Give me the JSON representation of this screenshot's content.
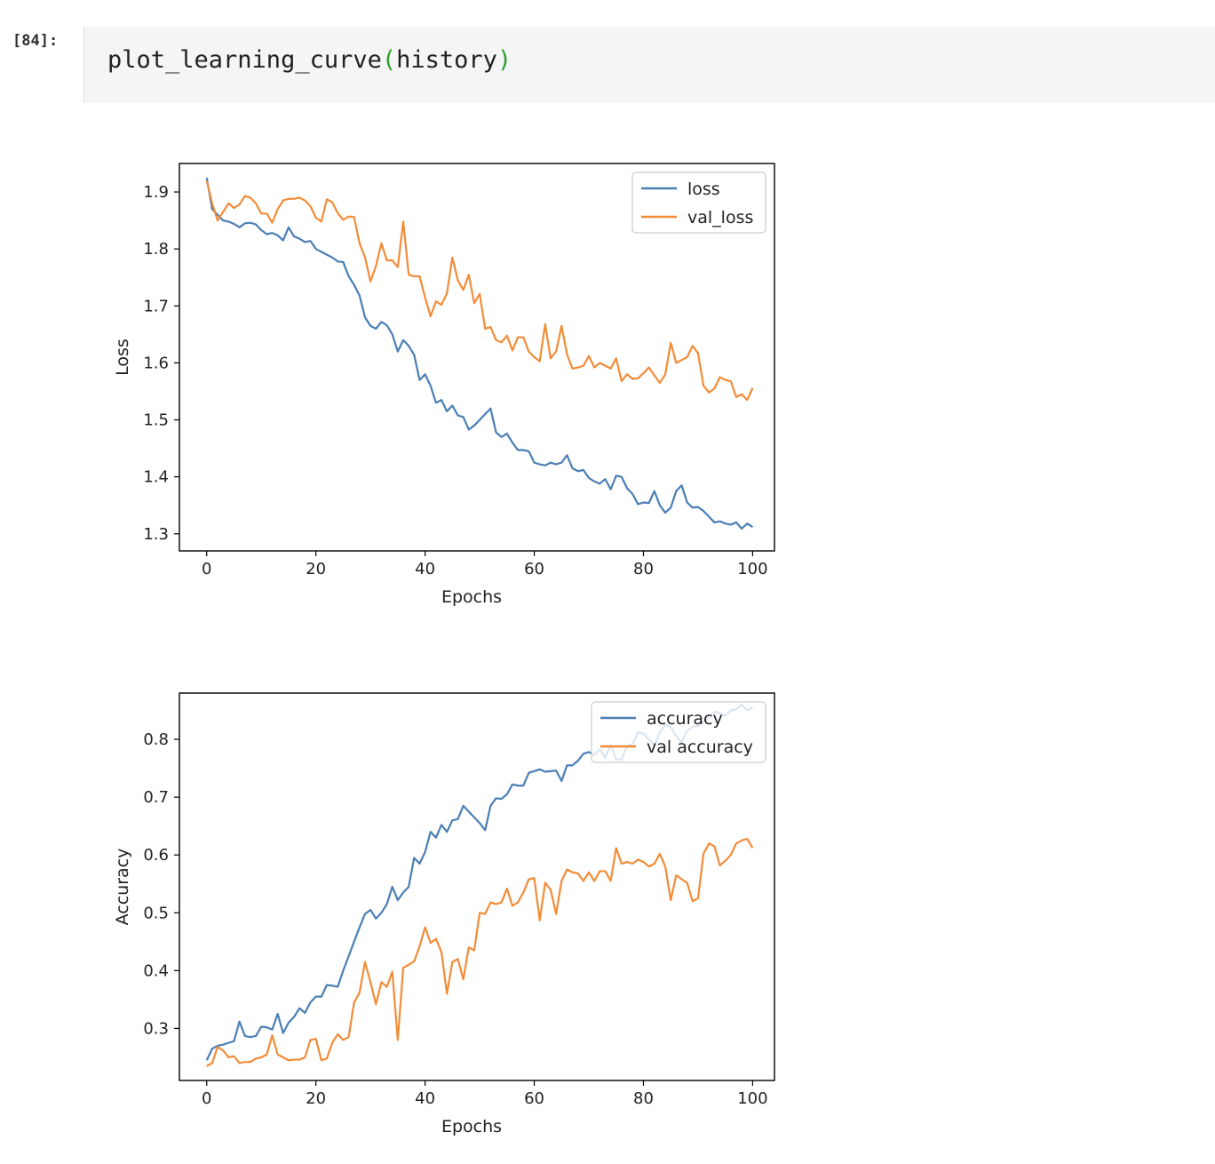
{
  "cell": {
    "prompt": "[84]:",
    "func": "plot_learning_curve",
    "open_paren": "(",
    "arg": "history",
    "close_paren": ")"
  },
  "colors": {
    "blue": "#4a7fb5",
    "orange": "#f28c38"
  },
  "chart_data": [
    {
      "type": "line",
      "xlabel": "Epochs",
      "ylabel": "Loss",
      "xlim": [
        -5,
        104
      ],
      "ylim": [
        1.27,
        1.95
      ],
      "xticks": [
        0,
        20,
        40,
        60,
        80,
        100
      ],
      "yticks": [
        1.3,
        1.4,
        1.5,
        1.6,
        1.7,
        1.8,
        1.9
      ],
      "legend": "top-right",
      "series": [
        {
          "name": "loss",
          "color": "#4a7fb5",
          "values": [
            1.925,
            1.87,
            1.86,
            1.85,
            1.848,
            1.844,
            1.838,
            1.845,
            1.846,
            1.843,
            1.833,
            1.826,
            1.828,
            1.824,
            1.815,
            1.838,
            1.822,
            1.818,
            1.812,
            1.814,
            1.8,
            1.795,
            1.79,
            1.785,
            1.778,
            1.777,
            1.752,
            1.737,
            1.718,
            1.68,
            1.665,
            1.66,
            1.672,
            1.666,
            1.65,
            1.62,
            1.64,
            1.63,
            1.614,
            1.57,
            1.58,
            1.56,
            1.53,
            1.535,
            1.515,
            1.525,
            1.508,
            1.505,
            1.483,
            1.49,
            1.5,
            1.51,
            1.52,
            1.478,
            1.47,
            1.476,
            1.46,
            1.447,
            1.447,
            1.445,
            1.425,
            1.422,
            1.42,
            1.425,
            1.422,
            1.425,
            1.438,
            1.415,
            1.41,
            1.412,
            1.398,
            1.392,
            1.388,
            1.396,
            1.378,
            1.402,
            1.4,
            1.38,
            1.37,
            1.352,
            1.355,
            1.354,
            1.375,
            1.35,
            1.337,
            1.346,
            1.375,
            1.385,
            1.355,
            1.346,
            1.347,
            1.34,
            1.33,
            1.32,
            1.322,
            1.318,
            1.316,
            1.32,
            1.309,
            1.318,
            1.312
          ]
        },
        {
          "name": "val_loss",
          "color": "#f28c38",
          "values": [
            1.92,
            1.88,
            1.85,
            1.865,
            1.88,
            1.872,
            1.878,
            1.893,
            1.89,
            1.88,
            1.862,
            1.862,
            1.846,
            1.87,
            1.885,
            1.888,
            1.888,
            1.89,
            1.885,
            1.875,
            1.855,
            1.848,
            1.887,
            1.882,
            1.863,
            1.851,
            1.857,
            1.856,
            1.81,
            1.785,
            1.743,
            1.77,
            1.81,
            1.78,
            1.78,
            1.768,
            1.848,
            1.755,
            1.752,
            1.752,
            1.715,
            1.682,
            1.708,
            1.702,
            1.722,
            1.785,
            1.745,
            1.728,
            1.755,
            1.705,
            1.721,
            1.66,
            1.663,
            1.64,
            1.636,
            1.648,
            1.622,
            1.645,
            1.645,
            1.62,
            1.61,
            1.603,
            1.668,
            1.608,
            1.62,
            1.665,
            1.615,
            1.59,
            1.592,
            1.595,
            1.612,
            1.592,
            1.6,
            1.595,
            1.59,
            1.608,
            1.568,
            1.58,
            1.572,
            1.573,
            1.582,
            1.592,
            1.578,
            1.565,
            1.58,
            1.635,
            1.6,
            1.605,
            1.61,
            1.63,
            1.617,
            1.56,
            1.548,
            1.555,
            1.575,
            1.57,
            1.568,
            1.54,
            1.545,
            1.535,
            1.556
          ]
        }
      ]
    },
    {
      "type": "line",
      "xlabel": "Epochs",
      "ylabel": "Accuracy",
      "xlim": [
        -5,
        104
      ],
      "ylim": [
        0.21,
        0.88
      ],
      "xticks": [
        0,
        20,
        40,
        60,
        80,
        100
      ],
      "yticks": [
        0.3,
        0.4,
        0.5,
        0.6,
        0.7,
        0.8
      ],
      "legend": "top-right",
      "series": [
        {
          "name": "accuracy",
          "color": "#4a7fb5",
          "values": [
            0.245,
            0.265,
            0.27,
            0.272,
            0.275,
            0.278,
            0.312,
            0.287,
            0.285,
            0.287,
            0.303,
            0.302,
            0.298,
            0.325,
            0.292,
            0.31,
            0.32,
            0.335,
            0.327,
            0.345,
            0.355,
            0.355,
            0.375,
            0.374,
            0.372,
            0.4,
            0.425,
            0.45,
            0.475,
            0.498,
            0.505,
            0.49,
            0.5,
            0.515,
            0.545,
            0.522,
            0.535,
            0.545,
            0.595,
            0.585,
            0.605,
            0.64,
            0.63,
            0.652,
            0.64,
            0.66,
            0.662,
            0.685,
            0.675,
            0.665,
            0.655,
            0.643,
            0.685,
            0.698,
            0.697,
            0.705,
            0.722,
            0.72,
            0.72,
            0.742,
            0.745,
            0.748,
            0.744,
            0.745,
            0.746,
            0.728,
            0.755,
            0.755,
            0.763,
            0.775,
            0.778,
            0.773,
            0.783,
            0.768,
            0.79,
            0.765,
            0.765,
            0.788,
            0.792,
            0.812,
            0.81,
            0.8,
            0.79,
            0.812,
            0.825,
            0.822,
            0.805,
            0.795,
            0.815,
            0.822,
            0.823,
            0.83,
            0.838,
            0.848,
            0.845,
            0.84,
            0.85,
            0.852,
            0.86,
            0.85,
            0.855
          ]
        },
        {
          "name": "val accuracy",
          "color": "#f28c38",
          "values": [
            0.235,
            0.24,
            0.268,
            0.262,
            0.25,
            0.252,
            0.24,
            0.242,
            0.242,
            0.248,
            0.25,
            0.255,
            0.288,
            0.255,
            0.25,
            0.245,
            0.246,
            0.246,
            0.25,
            0.28,
            0.282,
            0.245,
            0.248,
            0.275,
            0.29,
            0.28,
            0.285,
            0.345,
            0.362,
            0.415,
            0.38,
            0.342,
            0.38,
            0.372,
            0.398,
            0.28,
            0.405,
            0.41,
            0.416,
            0.442,
            0.475,
            0.448,
            0.455,
            0.432,
            0.36,
            0.415,
            0.42,
            0.385,
            0.44,
            0.435,
            0.5,
            0.498,
            0.518,
            0.515,
            0.518,
            0.542,
            0.512,
            0.518,
            0.535,
            0.558,
            0.56,
            0.487,
            0.552,
            0.54,
            0.498,
            0.555,
            0.575,
            0.57,
            0.568,
            0.555,
            0.57,
            0.555,
            0.572,
            0.572,
            0.555,
            0.612,
            0.585,
            0.588,
            0.585,
            0.592,
            0.588,
            0.58,
            0.585,
            0.602,
            0.58,
            0.522,
            0.565,
            0.558,
            0.552,
            0.52,
            0.525,
            0.602,
            0.62,
            0.615,
            0.582,
            0.59,
            0.6,
            0.62,
            0.625,
            0.628,
            0.612
          ]
        }
      ]
    }
  ]
}
